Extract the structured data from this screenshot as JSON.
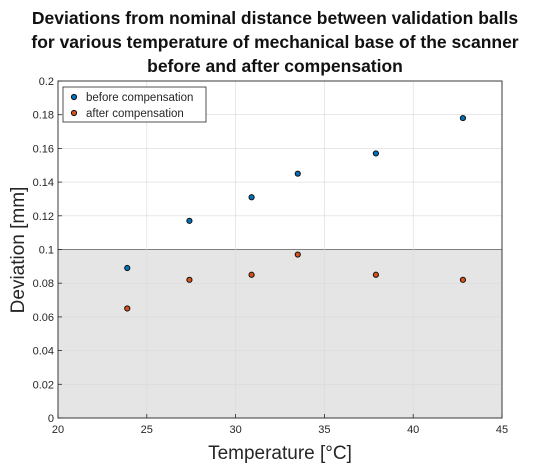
{
  "chart_data": {
    "type": "scatter",
    "title": [
      "Deviations from nominal distance between validation balls",
      "for various temperature of mechanical base of the scanner",
      "before and after compensation"
    ],
    "xlabel": "Temperature [°C]",
    "ylabel": "Deviation [mm]",
    "xlim": [
      20,
      45
    ],
    "ylim": [
      0,
      0.2
    ],
    "xticks": [
      "20",
      "25",
      "30",
      "35",
      "40",
      "45"
    ],
    "yticks": [
      "0",
      "0.02",
      "0.04",
      "0.06",
      "0.08",
      "0.1",
      "0.12",
      "0.14",
      "0.16",
      "0.18",
      "0.2"
    ],
    "grid": true,
    "legend_position": "top-left",
    "shaded_region": {
      "y_from": 0,
      "y_to": 0.1,
      "color": "#e5e5e5"
    },
    "series": [
      {
        "name": "before compensation",
        "color": "#0072bd",
        "points": [
          {
            "x": 23.9,
            "y": 0.089
          },
          {
            "x": 27.4,
            "y": 0.117
          },
          {
            "x": 30.9,
            "y": 0.131
          },
          {
            "x": 33.5,
            "y": 0.145
          },
          {
            "x": 37.9,
            "y": 0.157
          },
          {
            "x": 42.8,
            "y": 0.178
          }
        ]
      },
      {
        "name": "after compensation",
        "color": "#d95319",
        "points": [
          {
            "x": 23.9,
            "y": 0.065
          },
          {
            "x": 27.4,
            "y": 0.082
          },
          {
            "x": 30.9,
            "y": 0.085
          },
          {
            "x": 33.5,
            "y": 0.097
          },
          {
            "x": 37.9,
            "y": 0.085
          },
          {
            "x": 42.8,
            "y": 0.082
          }
        ]
      }
    ]
  }
}
